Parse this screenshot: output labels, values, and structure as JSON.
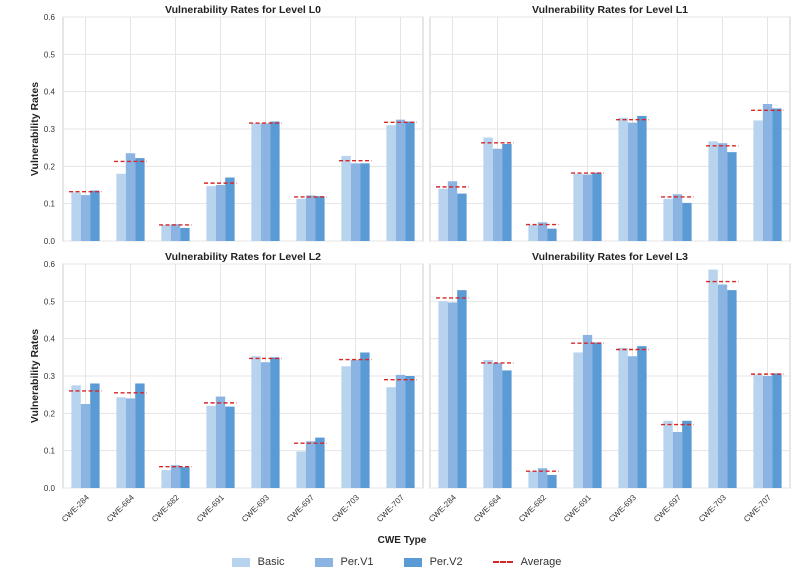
{
  "chart_data": {
    "type": "bar",
    "ylabel": "Vulnerability Rates",
    "xlabel": "CWE Type",
    "ylim": [
      0,
      0.6
    ],
    "yticks": [
      "0.0",
      "0.1",
      "0.2",
      "0.3",
      "0.4",
      "0.5",
      "0.6"
    ],
    "categories": [
      "CWE-284",
      "CWE-664",
      "CWE-682",
      "CWE-691",
      "CWE-693",
      "CWE-697",
      "CWE-703",
      "CWE-707"
    ],
    "series_names": [
      "Basic",
      "Per.V1",
      "Per.V2"
    ],
    "average_label": "Average",
    "colors": {
      "Basic": "#b7d3ee",
      "Per.V1": "#8cb4e2",
      "Per.V2": "#5b9bd5",
      "average": "#d62728",
      "grid": "#e5e5e5",
      "axis": "#cccccc"
    },
    "panels": [
      {
        "title": "Vulnerability Rates for Level L0",
        "series": [
          {
            "name": "Basic",
            "values": [
              0.13,
              0.18,
              0.043,
              0.147,
              0.315,
              0.113,
              0.228,
              0.31
            ]
          },
          {
            "name": "Per.V1",
            "values": [
              0.123,
              0.235,
              0.045,
              0.15,
              0.315,
              0.122,
              0.208,
              0.325
            ]
          },
          {
            "name": "Per.V2",
            "values": [
              0.135,
              0.222,
              0.035,
              0.17,
              0.32,
              0.12,
              0.208,
              0.32
            ]
          }
        ],
        "average": [
          0.132,
          0.213,
          0.043,
          0.155,
          0.316,
          0.118,
          0.215,
          0.318
        ]
      },
      {
        "title": "Vulnerability Rates for Level L1",
        "series": [
          {
            "name": "Basic",
            "values": [
              0.14,
              0.277,
              0.043,
              0.18,
              0.33,
              0.113,
              0.267,
              0.323
            ]
          },
          {
            "name": "Per.V1",
            "values": [
              0.16,
              0.247,
              0.05,
              0.178,
              0.317,
              0.125,
              0.262,
              0.367
            ]
          },
          {
            "name": "Per.V2",
            "values": [
              0.127,
              0.26,
              0.033,
              0.183,
              0.335,
              0.102,
              0.238,
              0.355
            ]
          }
        ],
        "average": [
          0.145,
          0.263,
          0.044,
          0.182,
          0.325,
          0.118,
          0.255,
          0.35
        ]
      },
      {
        "title": "Vulnerability Rates for Level L2",
        "series": [
          {
            "name": "Basic",
            "values": [
              0.275,
              0.243,
              0.048,
              0.22,
              0.353,
              0.098,
              0.326,
              0.27
            ]
          },
          {
            "name": "Per.V1",
            "values": [
              0.225,
              0.24,
              0.061,
              0.245,
              0.337,
              0.125,
              0.343,
              0.303
            ]
          },
          {
            "name": "Per.V2",
            "values": [
              0.28,
              0.28,
              0.056,
              0.218,
              0.35,
              0.135,
              0.363,
              0.3
            ]
          }
        ],
        "average": [
          0.26,
          0.255,
          0.057,
          0.228,
          0.347,
          0.12,
          0.344,
          0.29
        ]
      },
      {
        "title": "Vulnerability Rates for Level L3",
        "series": [
          {
            "name": "Basic",
            "values": [
              0.5,
              0.343,
              0.045,
              0.363,
              0.375,
              0.18,
              0.585,
              0.303
            ]
          },
          {
            "name": "Per.V1",
            "values": [
              0.497,
              0.335,
              0.053,
              0.41,
              0.353,
              0.15,
              0.545,
              0.3
            ]
          },
          {
            "name": "Per.V2",
            "values": [
              0.53,
              0.315,
              0.035,
              0.39,
              0.38,
              0.18,
              0.53,
              0.307
            ]
          }
        ],
        "average": [
          0.509,
          0.335,
          0.045,
          0.388,
          0.371,
          0.17,
          0.553,
          0.305
        ]
      }
    ]
  }
}
